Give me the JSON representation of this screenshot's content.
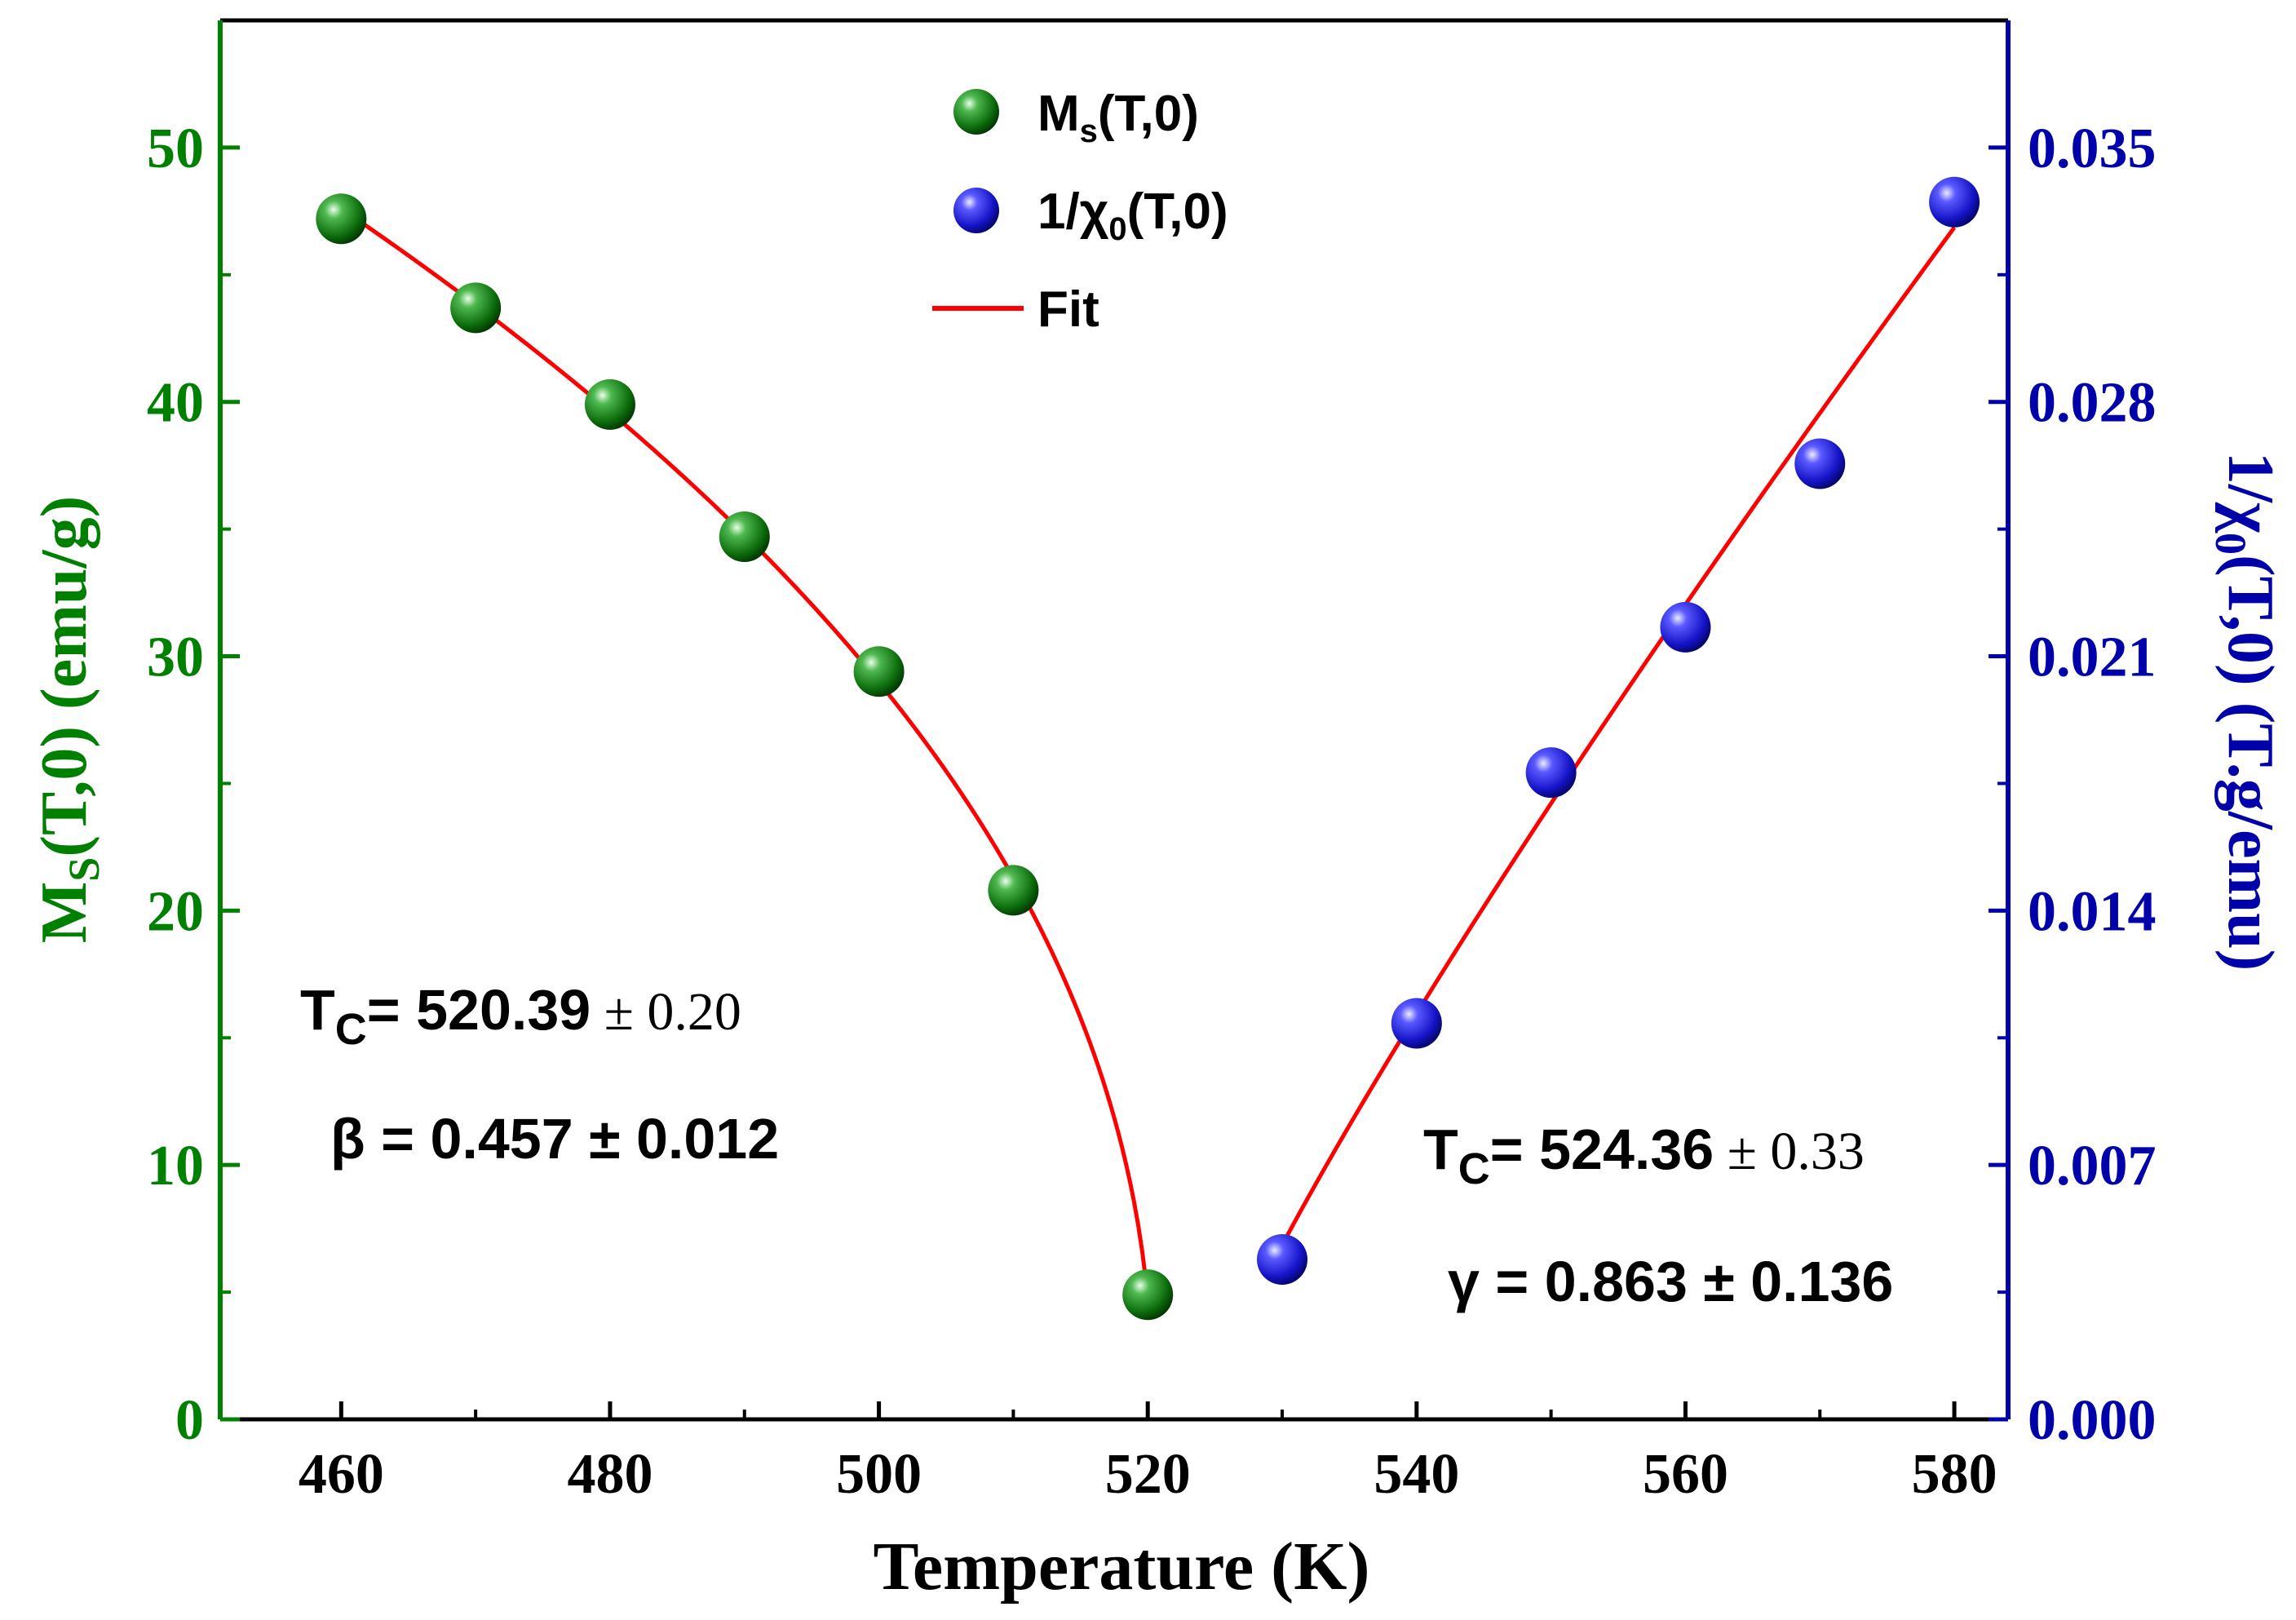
{
  "chart_data": {
    "type": "scatter",
    "title": "",
    "xlabel": "Temperature (K)",
    "ylabel_left": {
      "main": "M",
      "sub": "S",
      "rest": "(T,0) (emu/g)"
    },
    "ylabel_right": {
      "pre": "1/χ",
      "sub": "0",
      "rest": "(T,0) (T.g/emu)"
    },
    "xlim": [
      451,
      584
    ],
    "ylim_left": [
      0,
      55
    ],
    "ylim_right": [
      0.0,
      0.0385
    ],
    "xticks": [
      460,
      480,
      500,
      520,
      540,
      560,
      580
    ],
    "xtick_labels": [
      "460",
      "480",
      "500",
      "520",
      "540",
      "560",
      "580"
    ],
    "xticks_minor": [
      470,
      490,
      510,
      530,
      550,
      570
    ],
    "yticks_left": [
      0,
      10,
      20,
      30,
      40,
      50
    ],
    "ytick_labels_left": [
      "0",
      "10",
      "20",
      "30",
      "40",
      "50"
    ],
    "yticks_right": [
      0.0,
      0.007,
      0.014,
      0.021,
      0.028,
      0.035
    ],
    "ytick_labels_right": [
      "0.000",
      "0.007",
      "0.014",
      "0.021",
      "0.028",
      "0.035"
    ],
    "colors": {
      "left_axis": "#008000",
      "right_axis": "#0000aa",
      "fit": "#ff0000",
      "ms_marker": "#1a8a1a",
      "chi_marker": "#2020e0",
      "text": "#000000"
    },
    "series": [
      {
        "name": "M_s(T,0)",
        "axis": "left",
        "marker": "sphere",
        "color": "#1a8a1a",
        "x": [
          460,
          470,
          480,
          490,
          500,
          510,
          520
        ],
        "y": [
          47.2,
          43.7,
          39.9,
          34.7,
          29.4,
          20.8,
          4.9
        ]
      },
      {
        "name": "1/χ0(T,0)",
        "axis": "right",
        "marker": "sphere",
        "color": "#2020e0",
        "x": [
          530,
          540,
          550,
          560,
          570,
          580
        ],
        "y": [
          0.0044,
          0.0109,
          0.0178,
          0.0218,
          0.0263,
          0.0335
        ]
      }
    ],
    "fits": [
      {
        "name": "Fit (M_s)",
        "axis": "left",
        "color": "#ff0000",
        "model": "power_law",
        "x_start": 460,
        "x_end": 519.9,
        "Tc": 520.39,
        "beta": 0.457,
        "amplitude": 47.6
      },
      {
        "name": "Fit (1/χ0)",
        "axis": "right",
        "color": "#ff0000",
        "model": "power_law",
        "x_start": 530,
        "x_end": 580,
        "Tc": 524.36,
        "gamma": 0.863,
        "amplitude": 0.0328
      }
    ],
    "legend": {
      "placement": "top-center",
      "items": [
        {
          "kind": "ball",
          "color": "#1a8a1a",
          "main": "M",
          "sub": "s",
          "rest": "(T,0)"
        },
        {
          "kind": "ball",
          "color": "#2020e0",
          "main": "1/χ",
          "sub": "0",
          "rest": "(T,0)"
        },
        {
          "kind": "line",
          "color": "#ff0000",
          "main": "Fit",
          "sub": "",
          "rest": ""
        }
      ]
    },
    "annotations": {
      "left": {
        "tc_symbol": "T",
        "tc_sub": "C",
        "tc_eq": "= 520.39",
        "tc_err": " ± 0.20",
        "beta_line": "β = 0.457 ± 0.012"
      },
      "right": {
        "tc_symbol": "T",
        "tc_sub": "C",
        "tc_eq": "= 524.36",
        "tc_err": " ± 0.33",
        "gamma_line": "γ = 0.863 ± 0.136"
      }
    }
  }
}
